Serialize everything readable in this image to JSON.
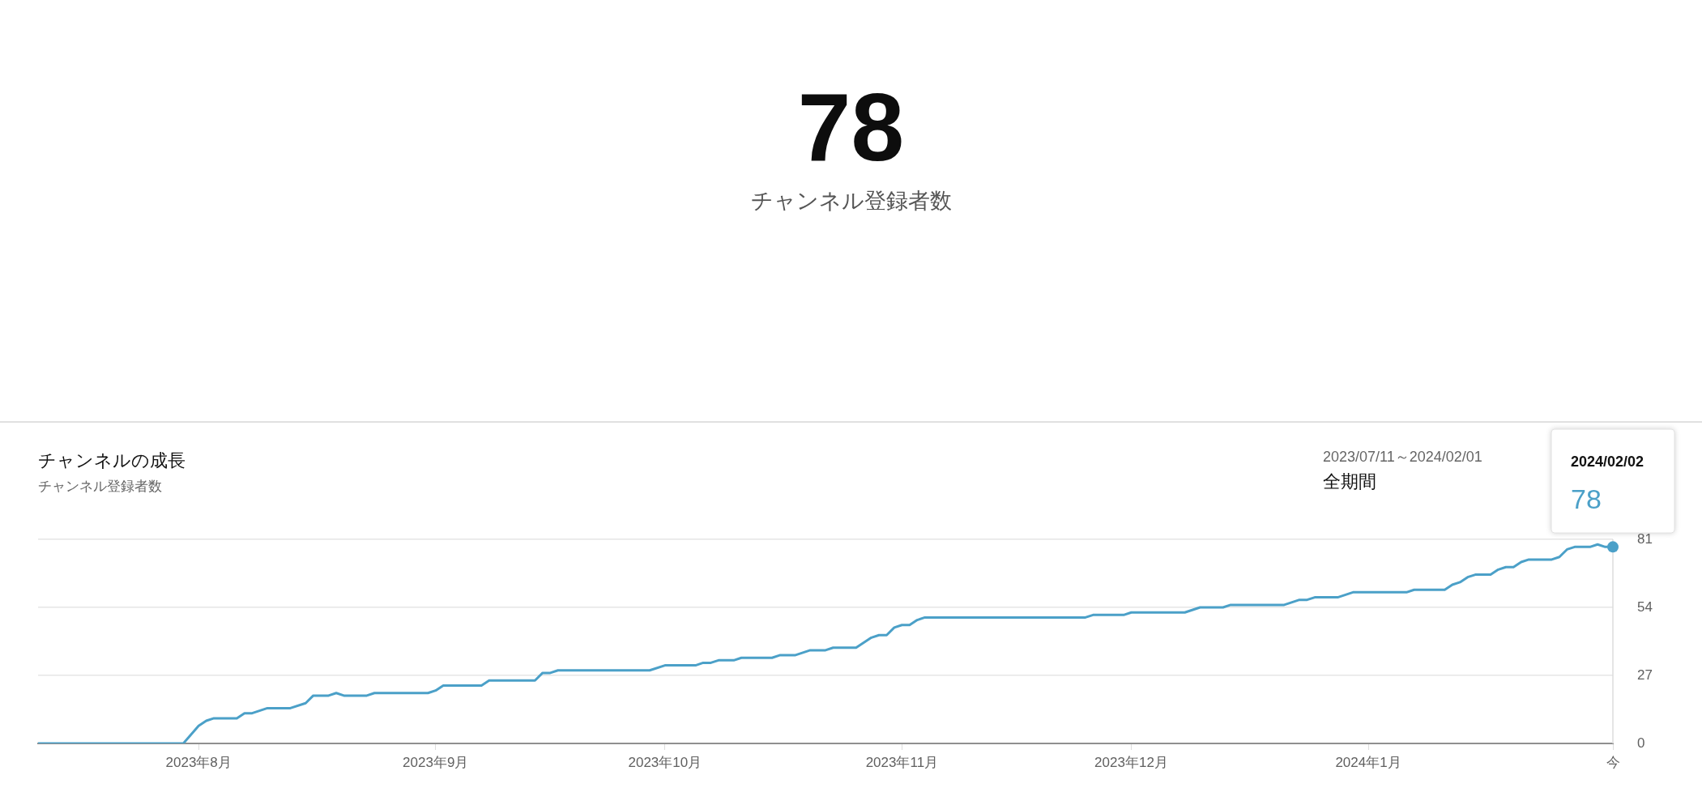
{
  "chart_data": {
    "type": "line",
    "title": "チャンネルの成長",
    "subtitle": "チャンネル登録者数",
    "annotations": [
      "78",
      "チャンネル登録者数",
      "2023/07/11～2024/02/01",
      "全期間",
      "2024/02/02",
      "78"
    ],
    "x": [
      "2023-07-11",
      "2023-07-30",
      "2023-08-01",
      "2023-08-02",
      "2023-08-03",
      "2023-08-06",
      "2023-08-07",
      "2023-08-08",
      "2023-08-10",
      "2023-08-13",
      "2023-08-15",
      "2023-08-16",
      "2023-08-18",
      "2023-08-19",
      "2023-08-20",
      "2023-08-23",
      "2023-08-24",
      "2023-08-31",
      "2023-09-01",
      "2023-09-02",
      "2023-09-07",
      "2023-09-08",
      "2023-09-14",
      "2023-09-15",
      "2023-09-16",
      "2023-09-17",
      "2023-09-29",
      "2023-10-01",
      "2023-10-05",
      "2023-10-06",
      "2023-10-07",
      "2023-10-08",
      "2023-10-10",
      "2023-10-11",
      "2023-10-15",
      "2023-10-16",
      "2023-10-18",
      "2023-10-20",
      "2023-10-22",
      "2023-10-23",
      "2023-10-26",
      "2023-10-27",
      "2023-10-28",
      "2023-10-29",
      "2023-10-30",
      "2023-10-31",
      "2023-11-01",
      "2023-11-02",
      "2023-11-03",
      "2023-11-04",
      "2023-11-25",
      "2023-11-26",
      "2023-11-30",
      "2023-12-01",
      "2023-12-08",
      "2023-12-10",
      "2023-12-13",
      "2023-12-14",
      "2023-12-21",
      "2023-12-23",
      "2023-12-24",
      "2023-12-25",
      "2023-12-28",
      "2023-12-30",
      "2024-01-06",
      "2024-01-07",
      "2024-01-11",
      "2024-01-12",
      "2024-01-13",
      "2024-01-14",
      "2024-01-15",
      "2024-01-17",
      "2024-01-18",
      "2024-01-19",
      "2024-01-20",
      "2024-01-21",
      "2024-01-22",
      "2024-01-25",
      "2024-01-26",
      "2024-01-27",
      "2024-01-28",
      "2024-01-30",
      "2024-01-31",
      "2024-02-01",
      "2024-02-02"
    ],
    "series": [
      {
        "color": "#4ba0c8",
        "values": [
          0,
          0,
          7,
          9,
          10,
          10,
          12,
          12,
          14,
          14,
          16,
          19,
          19,
          20,
          19,
          19,
          20,
          20,
          21,
          23,
          23,
          25,
          25,
          28,
          28,
          29,
          29,
          31,
          31,
          32,
          32,
          33,
          33,
          34,
          34,
          35,
          35,
          37,
          37,
          38,
          38,
          40,
          42,
          43,
          43,
          46,
          47,
          47,
          49,
          50,
          50,
          51,
          51,
          52,
          52,
          54,
          54,
          55,
          55,
          57,
          57,
          58,
          58,
          60,
          60,
          61,
          61,
          63,
          64,
          66,
          67,
          67,
          69,
          70,
          70,
          72,
          73,
          73,
          74,
          77,
          78,
          78,
          79,
          78,
          78
        ]
      }
    ],
    "xlim": [
      "2023-07-11",
      "2024-02-02"
    ],
    "xticks": [
      {
        "value": "2023-08-01",
        "label": "2023年8月"
      },
      {
        "value": "2023-09-01",
        "label": "2023年9月"
      },
      {
        "value": "2023-10-01",
        "label": "2023年10月"
      },
      {
        "value": "2023-11-01",
        "label": "2023年11月"
      },
      {
        "value": "2023-12-01",
        "label": "2023年12月"
      },
      {
        "value": "2024-01-01",
        "label": "2024年1月"
      },
      {
        "value": "2024-02-02",
        "label": "今"
      }
    ],
    "ylim": [
      0,
      81
    ],
    "yticks": [
      0,
      27,
      54,
      81
    ],
    "grid": "y",
    "legend": false
  }
}
